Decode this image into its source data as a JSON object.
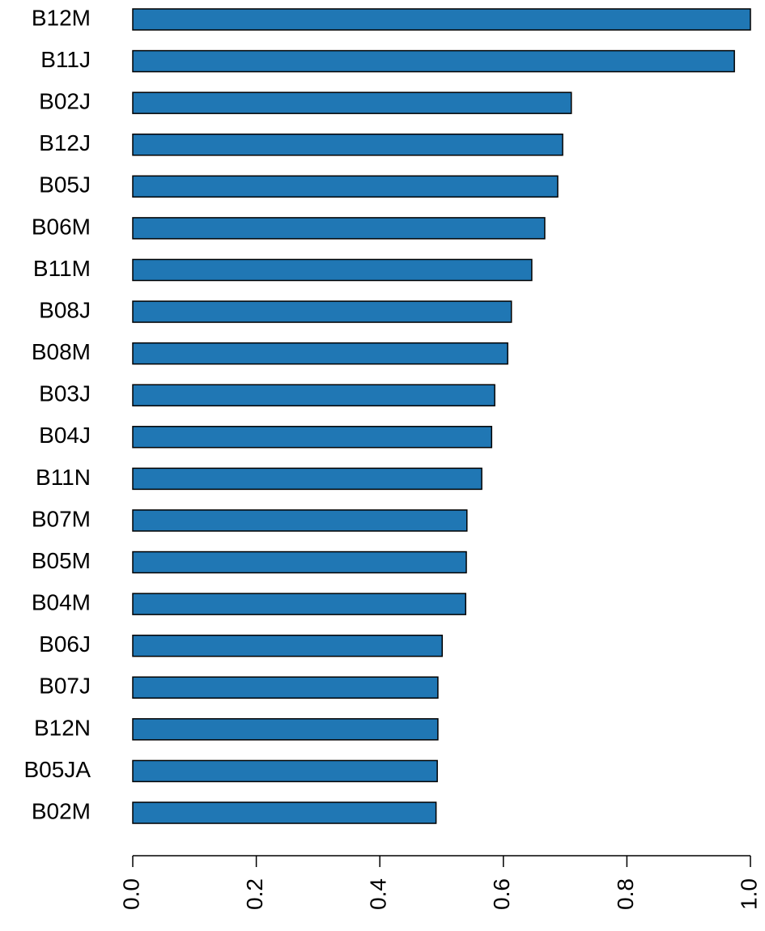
{
  "chart_data": {
    "type": "barh",
    "categories": [
      "B12M",
      "B11J",
      "B02J",
      "B12J",
      "B05J",
      "B06M",
      "B11M",
      "B08J",
      "B08M",
      "B03J",
      "B04J",
      "B11N",
      "B07M",
      "B05M",
      "B04M",
      "B06J",
      "B07J",
      "B12N",
      "B05JA",
      "B02M"
    ],
    "values": [
      1.0,
      0.974,
      0.71,
      0.696,
      0.688,
      0.667,
      0.646,
      0.613,
      0.607,
      0.586,
      0.581,
      0.565,
      0.541,
      0.54,
      0.539,
      0.501,
      0.494,
      0.494,
      0.493,
      0.491
    ],
    "color": "#2077b4",
    "xlim": [
      0,
      1
    ],
    "xticks": [
      {
        "value": 0,
        "label": "0.0"
      },
      0.2,
      0.4,
      0.6,
      0.8,
      {
        "value": 1,
        "label": "1.0"
      }
    ]
  }
}
